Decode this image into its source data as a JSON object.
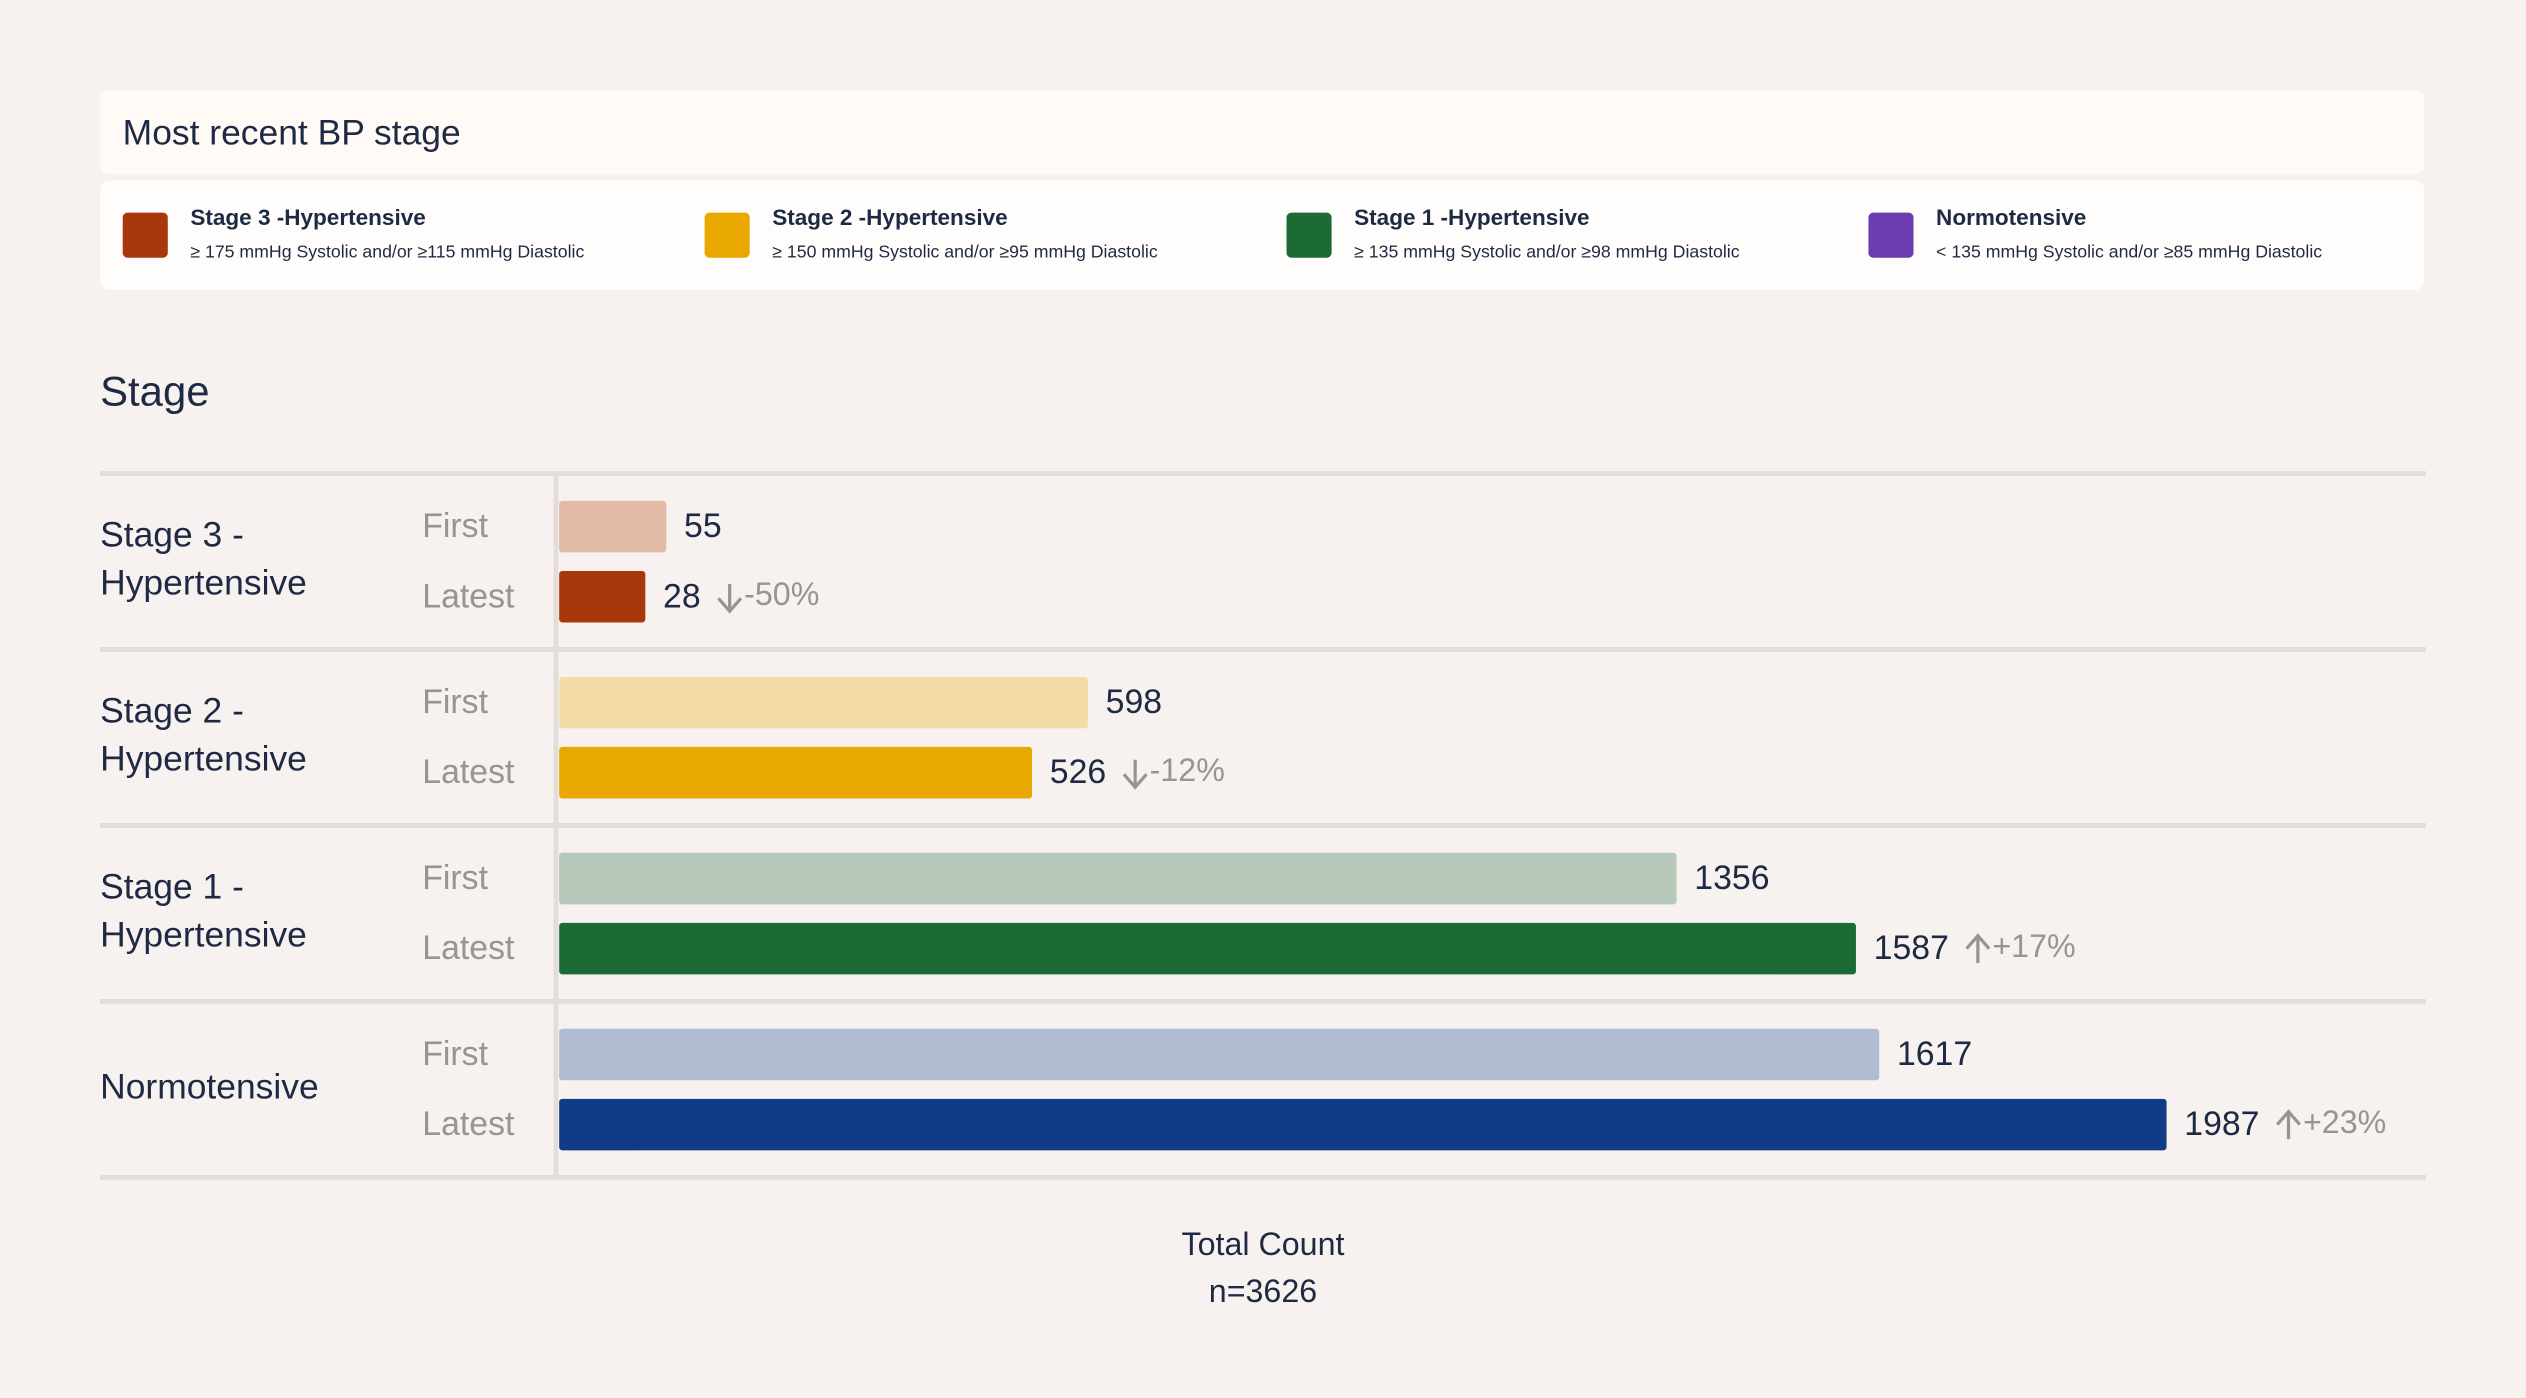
{
  "chart_data": {
    "type": "bar",
    "legend_title": "Most recent BP stage",
    "legend": [
      {
        "name": "Stage 3 -Hypertensive",
        "description": "≥ 175 mmHg Systolic and/or ≥115 mmHg Diastolic",
        "color": "#a8380b"
      },
      {
        "name": "Stage 2 -Hypertensive",
        "description": "≥ 150 mmHg Systolic and/or ≥95 mmHg Diastolic",
        "color": "#e8a800"
      },
      {
        "name": "Stage 1 -Hypertensive",
        "description": "≥ 135 mmHg Systolic and/or ≥98 mmHg Diastolic",
        "color": "#1d6b34"
      },
      {
        "name": "Normotensive",
        "description": "< 135 mmHg Systolic and/or ≥85 mmHg Diastolic",
        "color": "#6a3cb0"
      }
    ],
    "title": "Stage",
    "categories": [
      "Stage 3 - Hypertensive",
      "Stage 2 - Hypertensive",
      "Stage 1 - Hypertensive",
      "Normotensive"
    ],
    "series": [
      {
        "name": "First",
        "colors": [
          "#e2bba6",
          "#f4dca8",
          "#b6c8b9",
          "#b1bcd2"
        ],
        "values": [
          55,
          598,
          1356,
          1617
        ]
      },
      {
        "name": "Latest",
        "colors": [
          "#a8380b",
          "#e8a800",
          "#1d6b34",
          "#0f3b87"
        ],
        "values": [
          28,
          526,
          1587,
          1987
        ],
        "changes": [
          "-50%",
          "-12%",
          "+17%",
          "+23%"
        ]
      }
    ],
    "footer_title": "Total Count",
    "footer_value": "n=3626"
  }
}
